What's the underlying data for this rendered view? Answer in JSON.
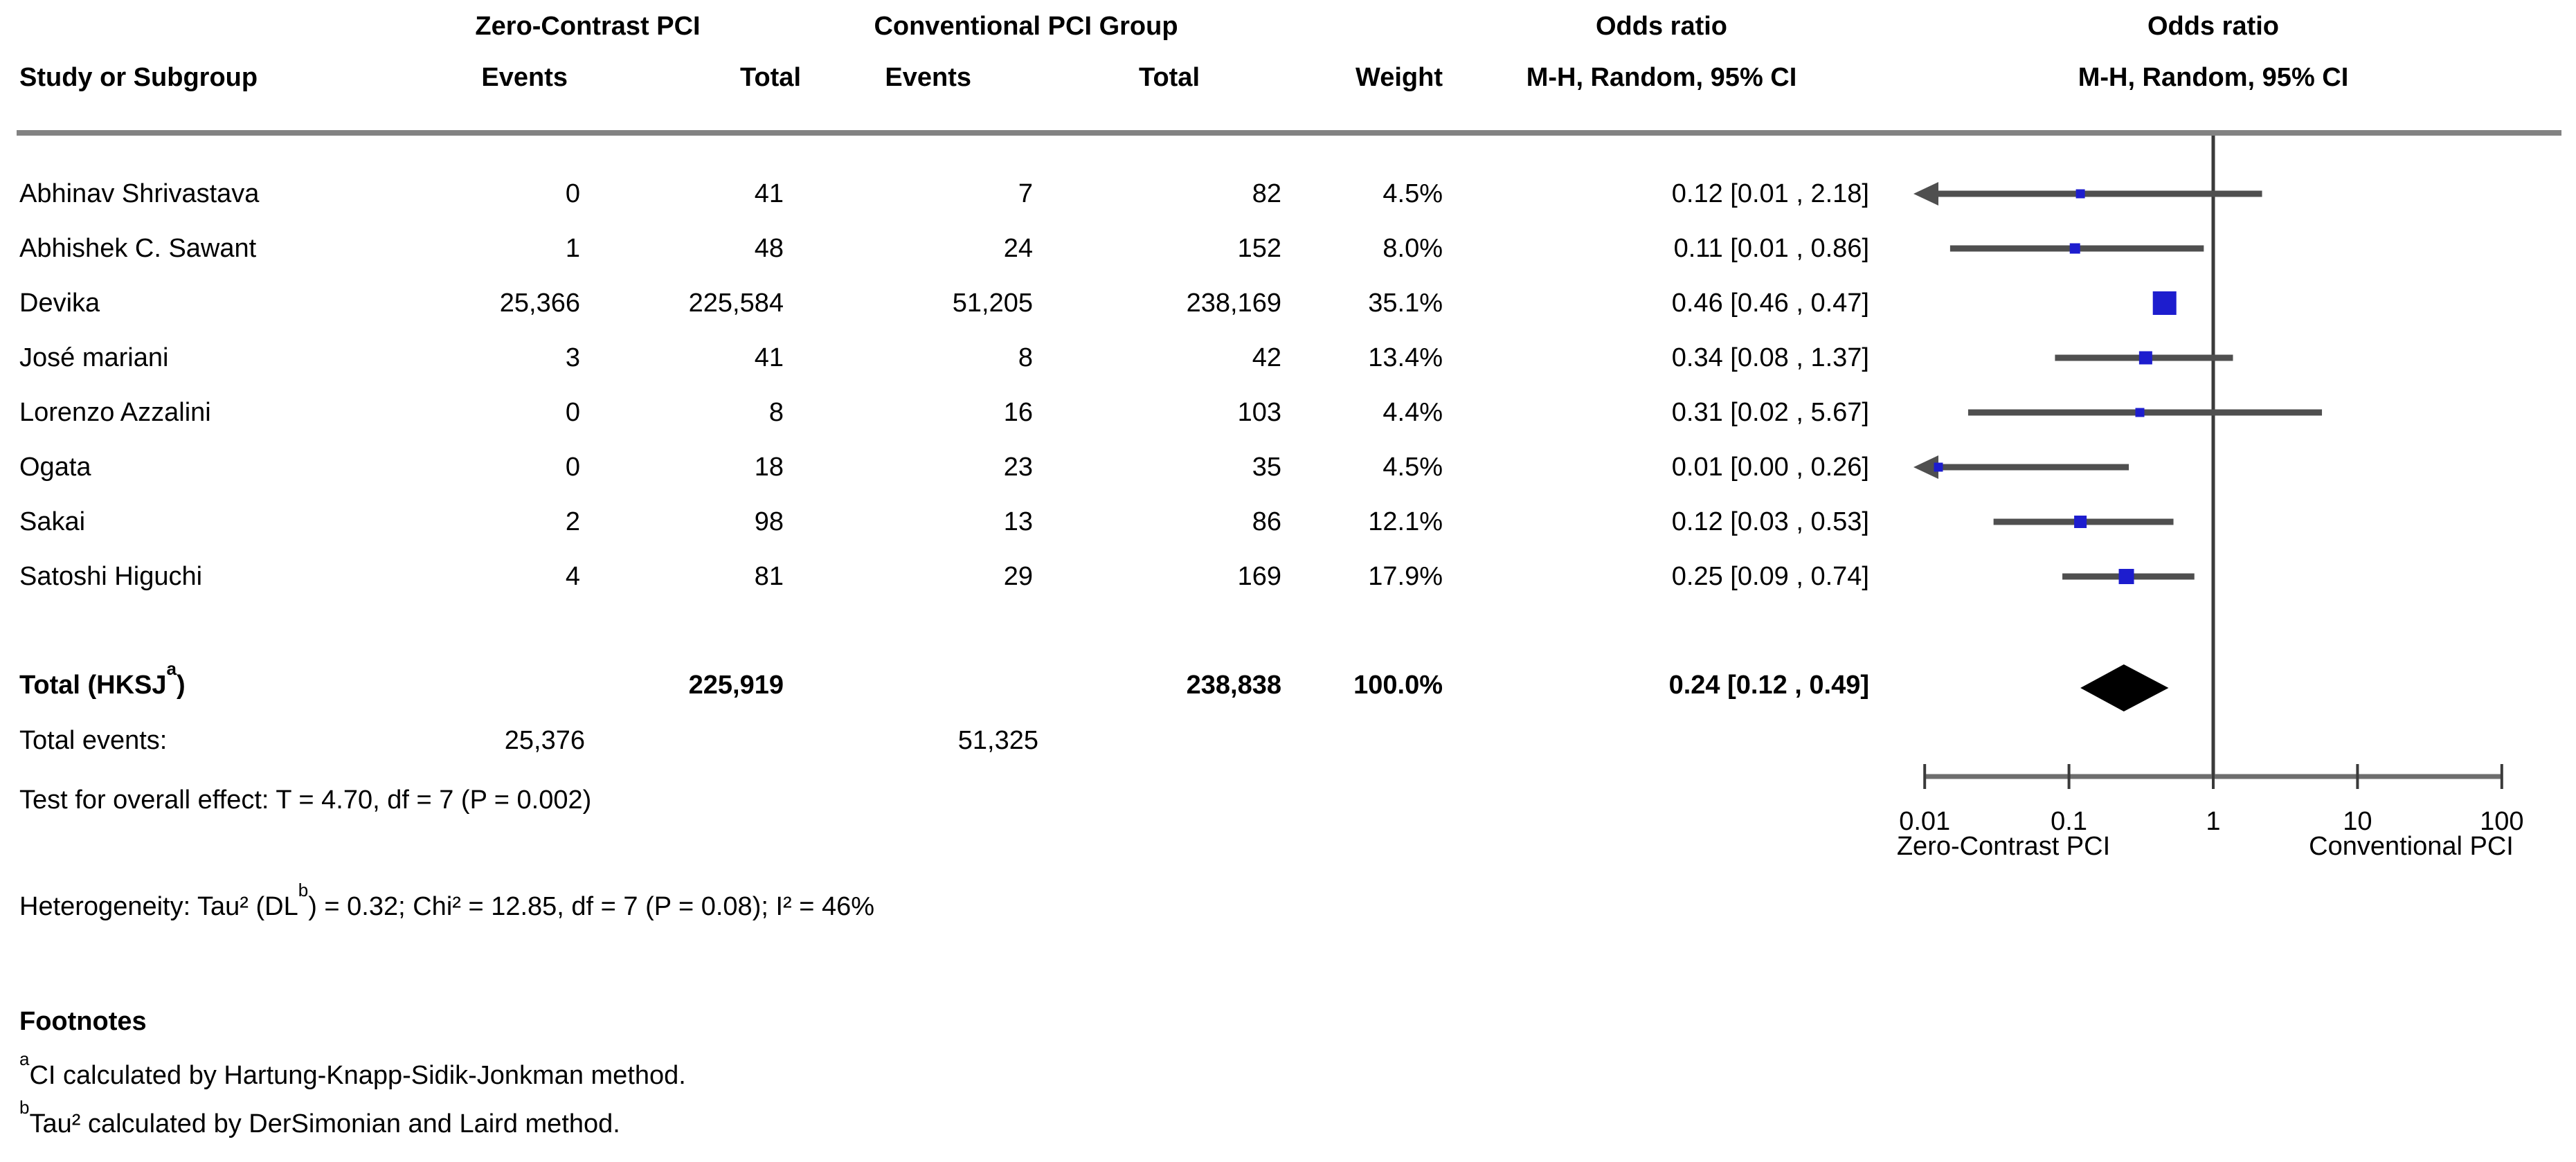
{
  "header": {
    "group1": "Zero-Contrast PCI",
    "group2": "Conventional PCI Group",
    "or_title": "Odds ratio",
    "or_sub": "M-H, Random, 95% CI",
    "plot_title": "Odds ratio",
    "plot_sub": "M-H, Random, 95% CI",
    "study": "Study or Subgroup",
    "events": "Events",
    "total": "Total",
    "events2": "Events",
    "total2": "Total",
    "weight": "Weight"
  },
  "chart_data": {
    "type": "forest",
    "x_axis": {
      "scale": "log10",
      "ticks": [
        0.01,
        0.1,
        1,
        10,
        100
      ],
      "tick_labels": [
        "0.01",
        "0.1",
        "1",
        "10",
        "100"
      ],
      "left_caption": "Zero-Contrast PCI",
      "right_caption": "Conventional PCI"
    },
    "null_line_value": 1,
    "studies": [
      {
        "name": "Abhinav Shrivastava",
        "e1": "0",
        "t1": "41",
        "e2": "7",
        "t2": "82",
        "weight": "4.5%",
        "weight_val": 4.5,
        "or": 0.12,
        "lo": 0.01,
        "hi": 2.18,
        "or_text": "0.12 [0.01 , 2.18]",
        "arrow_left": true
      },
      {
        "name": "Abhishek C. Sawant",
        "e1": "1",
        "t1": "48",
        "e2": "24",
        "t2": "152",
        "weight": "8.0%",
        "weight_val": 8.0,
        "or": 0.11,
        "lo": 0.015,
        "hi": 0.86,
        "or_text": "0.11 [0.01 , 0.86]",
        "arrow_left": false
      },
      {
        "name": "Devika",
        "e1": "25,366",
        "t1": "225,584",
        "e2": "51,205",
        "t2": "238,169",
        "weight": "35.1%",
        "weight_val": 35.1,
        "or": 0.46,
        "lo": 0.46,
        "hi": 0.47,
        "or_text": "0.46 [0.46 , 0.47]",
        "arrow_left": false
      },
      {
        "name": "José mariani",
        "e1": "3",
        "t1": "41",
        "e2": "8",
        "t2": "42",
        "weight": "13.4%",
        "weight_val": 13.4,
        "or": 0.34,
        "lo": 0.08,
        "hi": 1.37,
        "or_text": "0.34 [0.08 , 1.37]",
        "arrow_left": false
      },
      {
        "name": "Lorenzo Azzalini",
        "e1": "0",
        "t1": "8",
        "e2": "16",
        "t2": "103",
        "weight": "4.4%",
        "weight_val": 4.4,
        "or": 0.31,
        "lo": 0.02,
        "hi": 5.67,
        "or_text": "0.31 [0.02 , 5.67]",
        "arrow_left": false
      },
      {
        "name": "Ogata",
        "e1": "0",
        "t1": "18",
        "e2": "23",
        "t2": "35",
        "weight": "4.5%",
        "weight_val": 4.5,
        "or": 0.01,
        "lo": 0.004,
        "hi": 0.26,
        "or_text": "0.01 [0.00 , 0.26]",
        "arrow_left": true
      },
      {
        "name": "Sakai",
        "e1": "2",
        "t1": "98",
        "e2": "13",
        "t2": "86",
        "weight": "12.1%",
        "weight_val": 12.1,
        "or": 0.12,
        "lo": 0.03,
        "hi": 0.53,
        "or_text": "0.12 [0.03 , 0.53]",
        "arrow_left": false
      },
      {
        "name": "Satoshi Higuchi",
        "e1": "4",
        "t1": "81",
        "e2": "29",
        "t2": "169",
        "weight": "17.9%",
        "weight_val": 17.9,
        "or": 0.25,
        "lo": 0.09,
        "hi": 0.74,
        "or_text": "0.25 [0.09 , 0.74]",
        "arrow_left": false
      }
    ],
    "total": {
      "label_pre": "Total (HKSJ",
      "label_sup": "a",
      "label_post": ")",
      "t1": "225,919",
      "t2": "238,838",
      "weight": "100.0%",
      "or": 0.24,
      "lo": 0.12,
      "hi": 0.49,
      "or_text": "0.24 [0.12 , 0.49]"
    },
    "total_events": {
      "label": "Total events:",
      "v1": "25,376",
      "v2": "51,325"
    },
    "overall_effect": "Test for overall effect: T = 4.70, df = 7 (P = 0.002)",
    "heterogeneity": {
      "pre": "Heterogeneity: Tau² (DL",
      "sup": "b",
      "post": ") = 0.32; Chi² = 12.85, df = 7 (P = 0.08); I² = 46%"
    }
  },
  "footnotes": {
    "title": "Footnotes",
    "a_sup": "a",
    "a_text": "CI calculated by Hartung-Knapp-Sidik-Jonkman method.",
    "b_sup": "b",
    "b_text": "Tau² calculated by DerSimonian and Laird method."
  },
  "colors": {
    "square": "#1d1dce",
    "diamond": "#000000",
    "ci_line": "#4f4f4f",
    "axis": "#6e6e6e",
    "tick": "#3a3a3a",
    "null_line": "#3a3a3a",
    "separator": "#828282",
    "text": "#000000"
  }
}
